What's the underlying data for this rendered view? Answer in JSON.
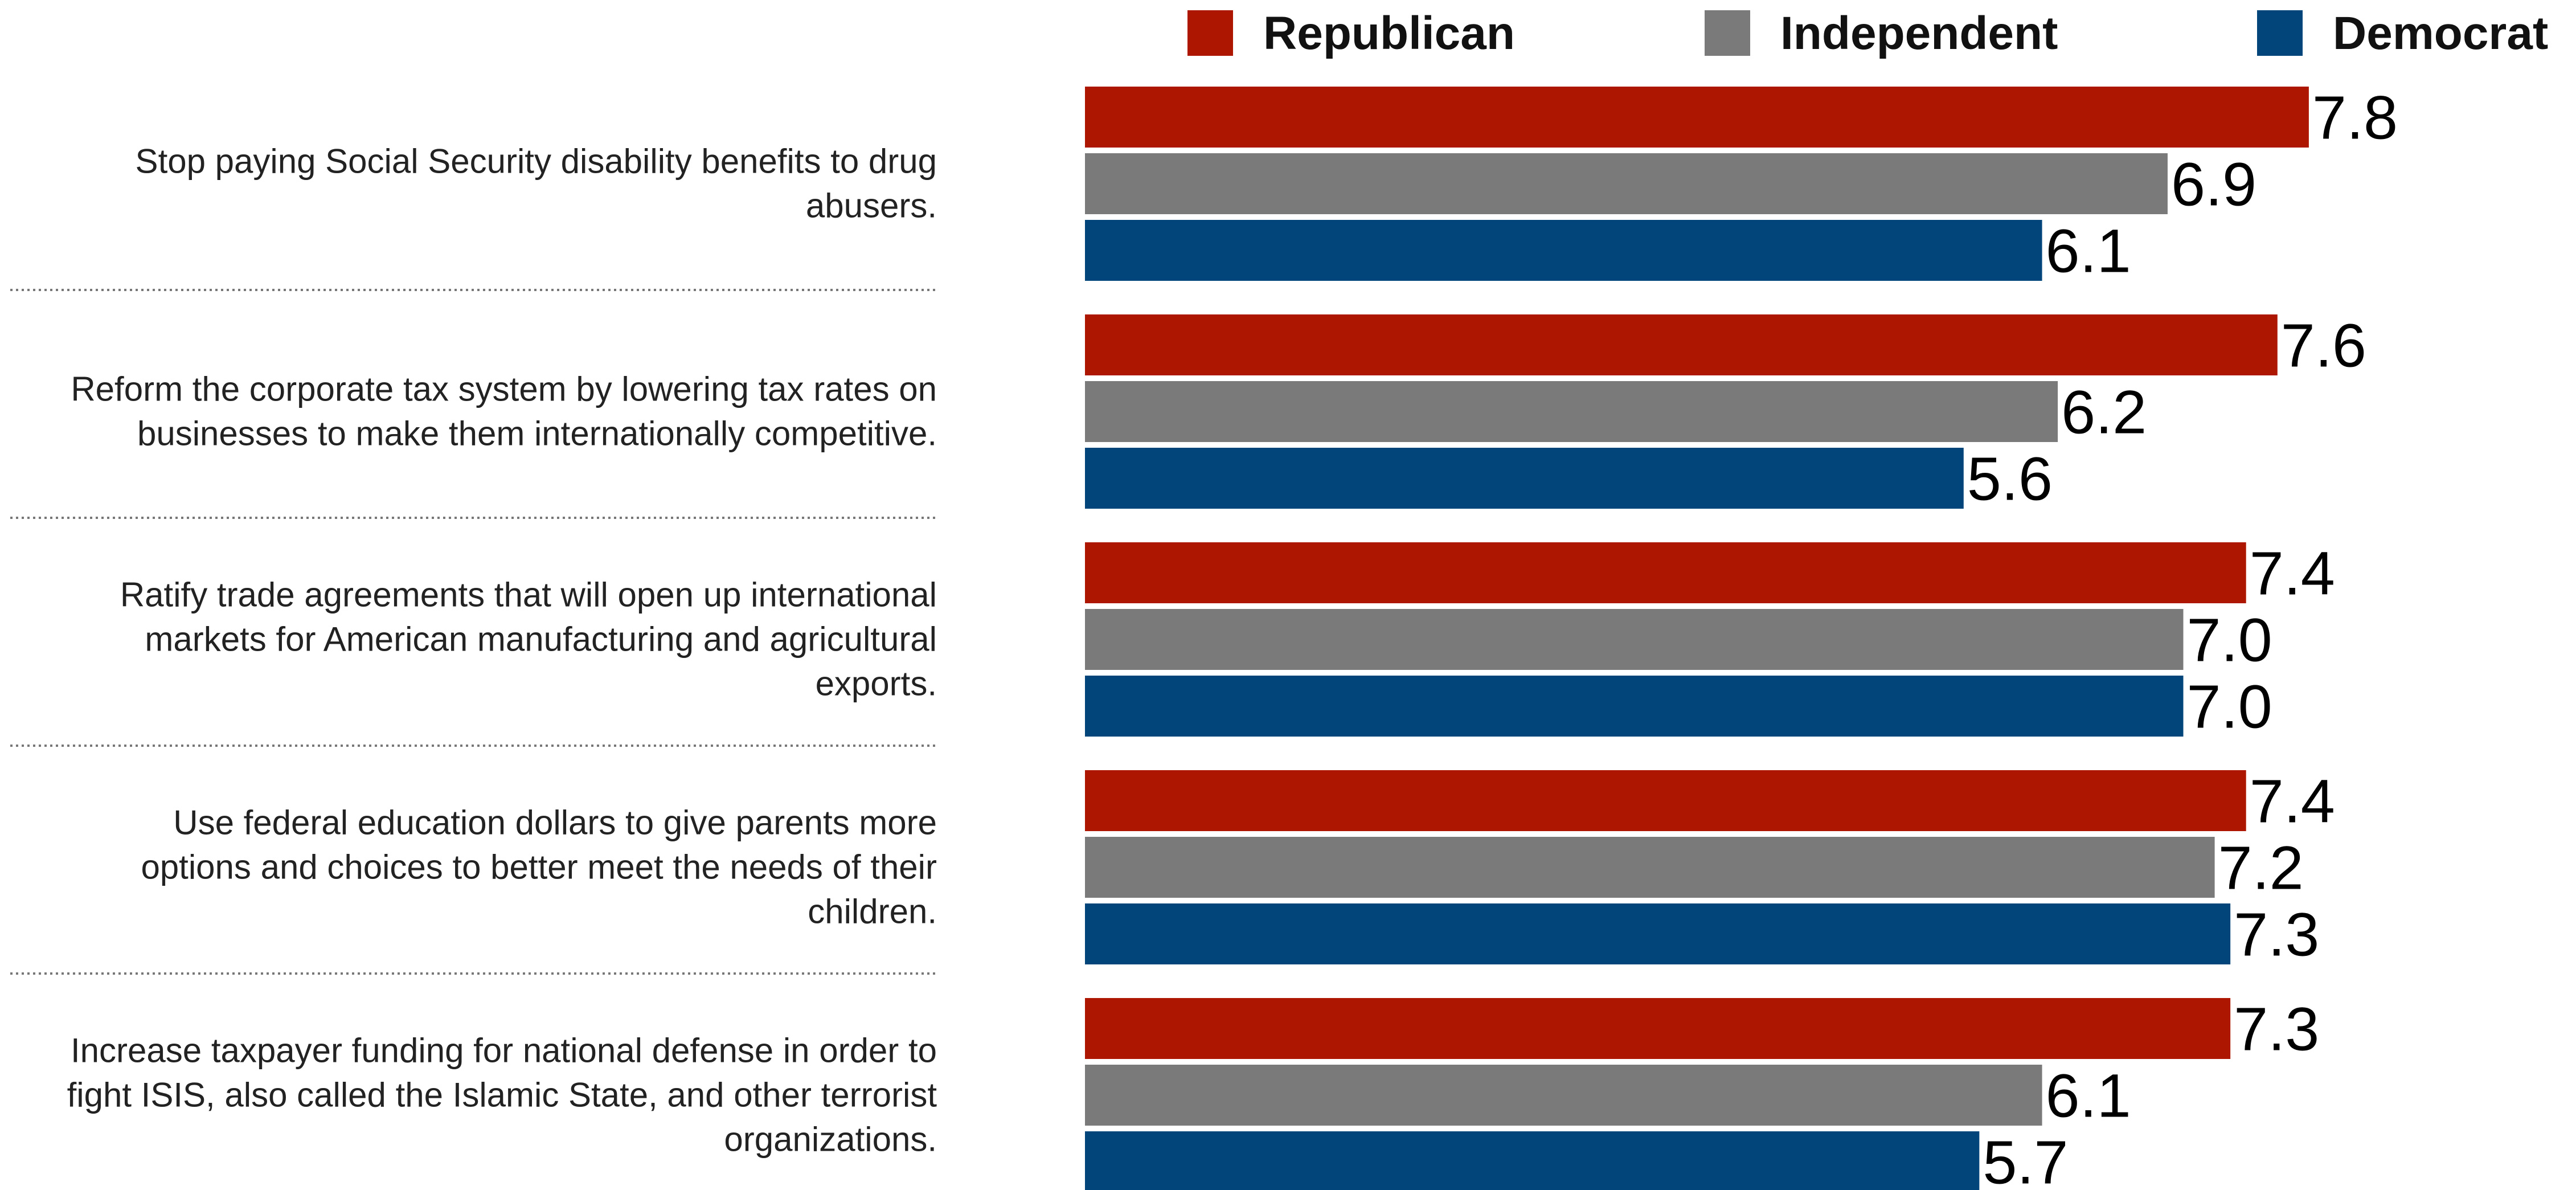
{
  "chart_data": {
    "type": "bar",
    "orientation": "horizontal",
    "legend_position": "top",
    "grid": false,
    "xlim": [
      0,
      8.3
    ],
    "series": [
      {
        "name": "Republican",
        "color": "#ad1600",
        "values": [
          7.8,
          7.6,
          7.4,
          7.4,
          7.3
        ]
      },
      {
        "name": "Independent",
        "color": "#7a7a7a",
        "values": [
          6.9,
          6.2,
          7.0,
          7.2,
          6.1
        ]
      },
      {
        "name": "Democrat",
        "color": "#02457a",
        "values": [
          6.1,
          5.6,
          7.0,
          7.3,
          5.7
        ]
      }
    ],
    "categories": [
      [
        "Stop paying Social Security disability benefits to drug",
        "abusers."
      ],
      [
        "Reform the corporate tax system by lowering tax rates on",
        "businesses to make them internationally competitive."
      ],
      [
        "Ratify trade agreements that will open up international",
        "markets for American manufacturing and agricultural",
        "exports."
      ],
      [
        "Use federal education dollars to give parents more",
        "options and choices to better meet the needs of their",
        "children."
      ],
      [
        "Increase taxpayer funding for national defense in order to",
        "fight ISIS, also called the Islamic State, and other terrorist",
        "organizations."
      ]
    ]
  }
}
